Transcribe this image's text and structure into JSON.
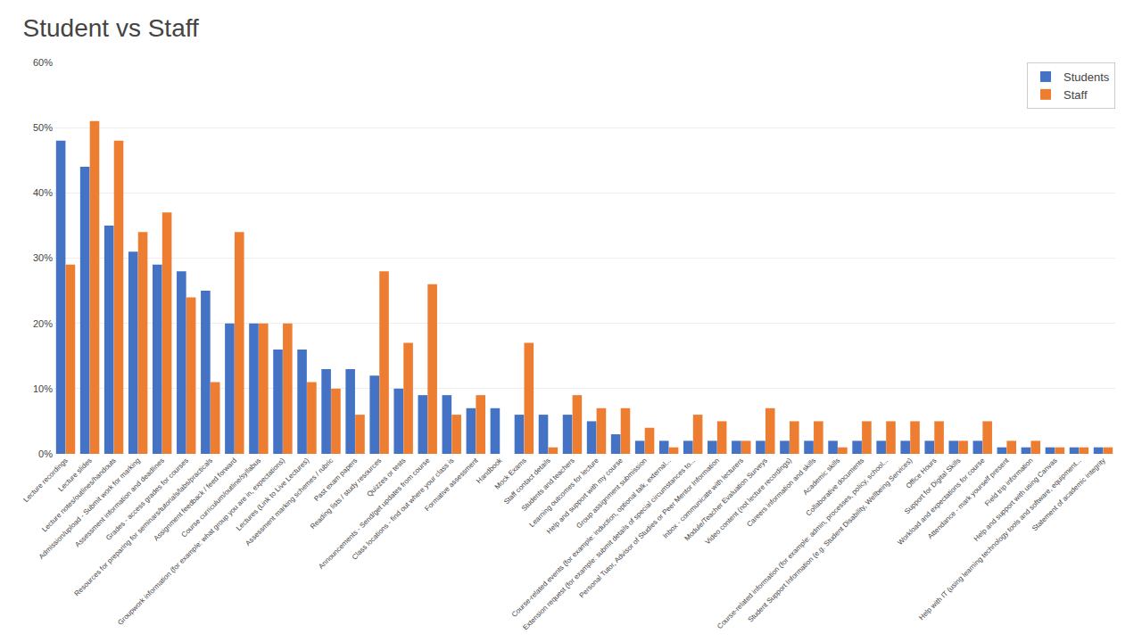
{
  "chart_data": {
    "type": "bar",
    "title": "Student vs Staff",
    "categories": [
      "Lecture recordings",
      "Lecture slides",
      "Lecture notes/outlines/handouts",
      "Admission/upload - Submit work for marking",
      "Assessment information and deadlines",
      "Grades - access grades for courses",
      "Resources for preparing for seminars/tutorials/labs/practicals",
      "Assignment feedback / feed forward",
      "Course curriculum/outline/syllabus",
      "Groupwork information (for example: what group you are in, expectations)",
      "Lectures (Link to Live Lectures)",
      "Assessment marking schemes / rubric",
      "Past exam papers",
      "Reading lists / study resources",
      "Quizzes or tests",
      "Announcements - Send/get updates from course",
      "Class locations - find out where your class is",
      "Formative assessment",
      "Handbook",
      "Mock Exams",
      "Staff contact details",
      "Students and teachers",
      "Learning outcomes for lecture",
      "Help and support with my course",
      "Group assignment submission",
      "Course-related events (for example: induction, optional talk, external...",
      "Extension request (for example: submit details of special circumstances to...",
      "Personal Tutor, Advisor of Studies or Peer Mentor Information",
      "Inbox - communicate with lecturers",
      "Module/Teacher Evaluation Surveys",
      "Video content (not lecture recordings)",
      "Careers information and skills",
      "Academic skills",
      "Collaborative documents",
      "Course-related information (for example: admin, processes, policy, school...",
      "Student Support Information (e.g. Student Disability, Wellbeing Services)",
      "Office Hours",
      "Support for Digital Skills",
      "Workload and expectations for course",
      "Attendance - mark yourself present",
      "Field trip information",
      "Help and support with using Canvas",
      "Help with IT (using learning technology tools and software, equipment...",
      "Statement of academic integrity"
    ],
    "series": [
      {
        "name": "Students",
        "color": "#4472C4",
        "values": [
          48,
          44,
          35,
          31,
          29,
          28,
          25,
          20,
          20,
          16,
          16,
          13,
          13,
          12,
          10,
          9,
          9,
          7,
          7,
          6,
          6,
          6,
          5,
          3,
          2,
          2,
          2,
          2,
          2,
          2,
          2,
          2,
          2,
          2,
          2,
          2,
          2,
          2,
          2,
          1,
          1,
          1,
          1,
          1
        ]
      },
      {
        "name": "Staff",
        "color": "#ED7D31",
        "values": [
          29,
          51,
          48,
          34,
          37,
          24,
          11,
          34,
          20,
          20,
          11,
          10,
          6,
          28,
          17,
          26,
          6,
          9,
          0,
          17,
          1,
          9,
          7,
          7,
          4,
          1,
          6,
          5,
          2,
          7,
          5,
          5,
          1,
          5,
          5,
          5,
          5,
          2,
          5,
          2,
          2,
          1,
          1,
          1
        ]
      }
    ],
    "ylim": [
      0,
      60
    ],
    "yticks": [
      {
        "value": 0,
        "label": "0%"
      },
      {
        "value": 10,
        "label": "10%"
      },
      {
        "value": 20,
        "label": "20%"
      },
      {
        "value": 30,
        "label": "30%"
      },
      {
        "value": 40,
        "label": "40%"
      },
      {
        "value": 50,
        "label": "50%"
      },
      {
        "value": 60,
        "label": "60%"
      }
    ],
    "grid": true,
    "legend": "upper right"
  }
}
